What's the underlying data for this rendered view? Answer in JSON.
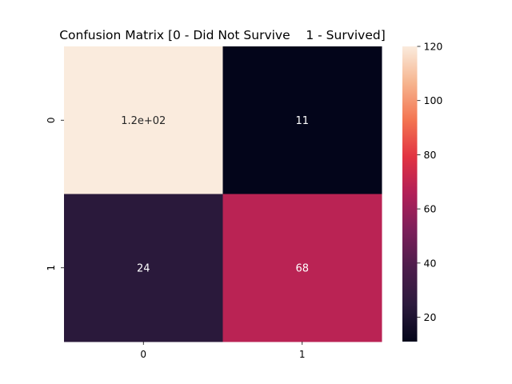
{
  "chart_data": {
    "type": "heatmap",
    "title": "Confusion Matrix [0 - Did Not Survive    1 - Survived]",
    "xlabel": "",
    "ylabel": "",
    "x_categories": [
      "0",
      "1"
    ],
    "y_categories": [
      "0",
      "1"
    ],
    "values": [
      [
        120,
        11
      ],
      [
        24,
        68
      ]
    ],
    "annotations": [
      [
        "1.2e+02",
        "11"
      ],
      [
        "24",
        "68"
      ]
    ],
    "colormap": "rocket",
    "colorbar": {
      "range": [
        11,
        120
      ],
      "ticks": [
        20,
        40,
        60,
        80,
        100,
        120
      ],
      "tick_labels": [
        "20",
        "40",
        "60",
        "80",
        "100",
        "120"
      ]
    },
    "grid": false
  }
}
